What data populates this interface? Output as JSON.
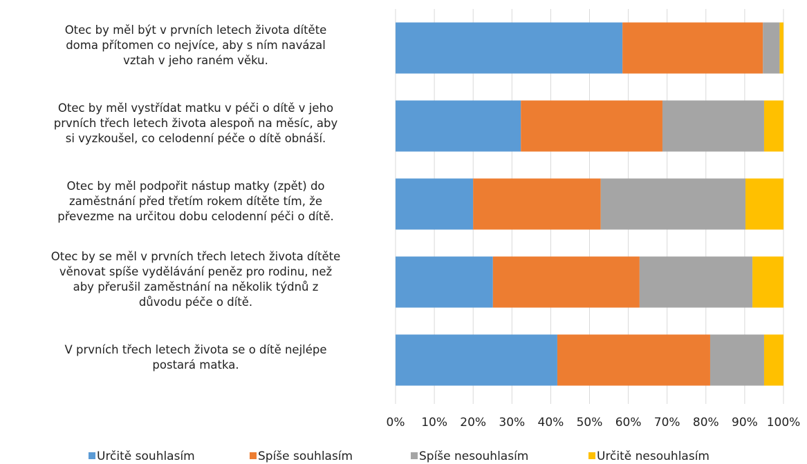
{
  "chart_data": {
    "type": "stacked_barh",
    "categories": [
      "Otec by měl být v prvních letech života dítěte\ndoma přítomen co nejvíce, aby s ním navázal\nvztah v jeho raném věku.",
      "Otec by měl vystřídat matku v péči o dítě v jeho\nprvních třech letech života alespoň na měsíc, aby\nsi vyzkoušel, co celodenní péče o dítě obnáší.",
      "Otec by měl podpořit nástup matky (zpět) do\nzaměstnání před třetím rokem dítěte tím, že\npřevezme na určitou dobu celodenní péči o dítě.",
      "Otec by se měl v prvních třech letech života dítěte\nvěnovat spíše vydělávání peněz pro rodinu, než\naby přerušil zaměstnání na několik týdnů z\ndůvodu péče o dítě.",
      "V prvních třech letech života se o dítě nejlépe\npostará matka."
    ],
    "series": [
      {
        "name": "Určitě souhlasím",
        "color": "#5b9bd5",
        "values": [
          58.5,
          32.3,
          20.0,
          25.1,
          41.7
        ]
      },
      {
        "name": "Spíše souhlasím",
        "color": "#ed7d31",
        "values": [
          36.2,
          36.5,
          32.9,
          37.8,
          39.4
        ]
      },
      {
        "name": "Spíše nesouhlasím",
        "color": "#a5a5a5",
        "values": [
          4.3,
          26.2,
          37.3,
          29.1,
          13.9
        ]
      },
      {
        "name": "Určitě nesouhlasím",
        "color": "#ffc000",
        "values": [
          1.0,
          5.0,
          9.8,
          8.0,
          5.0
        ]
      }
    ],
    "xlim": [
      0,
      100
    ],
    "xticks": [
      {
        "value": 0,
        "label": "0%"
      },
      {
        "value": 10,
        "label": "10%"
      },
      {
        "value": 20,
        "label": "20%"
      },
      {
        "value": 30,
        "label": "30%"
      },
      {
        "value": 40,
        "label": "40%"
      },
      {
        "value": 50,
        "label": "50%"
      },
      {
        "value": 60,
        "label": "60%"
      },
      {
        "value": 70,
        "label": "70%"
      },
      {
        "value": 80,
        "label": "80%"
      },
      {
        "value": 90,
        "label": "90%"
      },
      {
        "value": 100,
        "label": "100%"
      }
    ],
    "grid": true,
    "legend": "bottom"
  }
}
